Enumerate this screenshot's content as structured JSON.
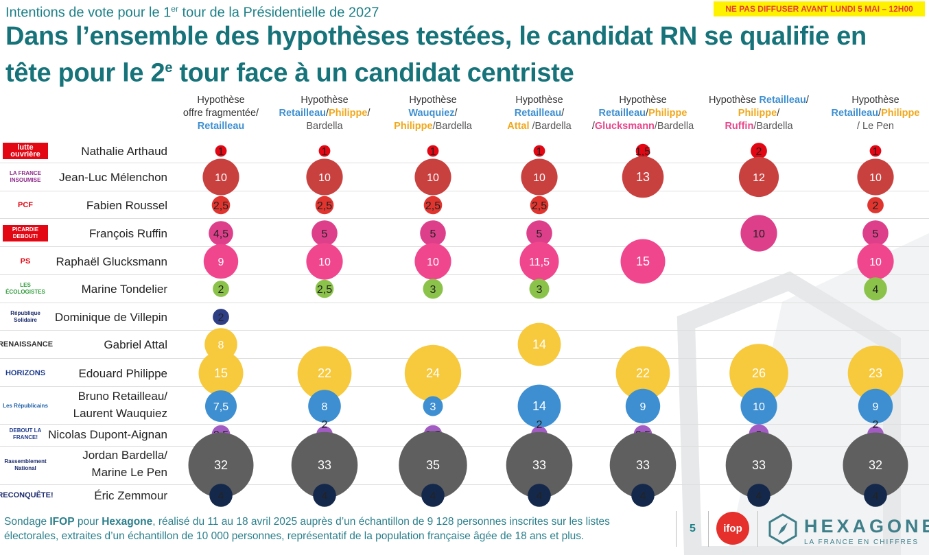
{
  "header": {
    "subtitle_pre": "Intentions de vote pour le 1",
    "subtitle_sup": "er",
    "subtitle_post": " tour de la Présidentielle de 2027",
    "embargo": "NE PAS DIFFUSER AVANT LUNDI 5 MAI – 12H00",
    "headline_1": "Dans l’ensemble des hypothèses testées, le candidat RN se qualifie en",
    "headline_2_pre": "tête pour le 2",
    "headline_2_sup": "e",
    "headline_2_post": " tour face à un candidat centriste"
  },
  "columns": [
    {
      "parts": [
        {
          "t": "Hypothèse",
          "c": "plain"
        },
        {
          "br": true
        },
        {
          "t": "offre fragmentée/",
          "c": "plain"
        },
        {
          "br": true
        },
        {
          "t": "Retailleau",
          "c": "blue"
        }
      ]
    },
    {
      "parts": [
        {
          "t": "Hypothèse",
          "c": "plain"
        },
        {
          "br": true
        },
        {
          "t": "Retailleau",
          "c": "blue"
        },
        {
          "t": "/",
          "c": "plain"
        },
        {
          "t": "Philippe",
          "c": "orange"
        },
        {
          "t": "/",
          "c": "plain"
        },
        {
          "br": true
        },
        {
          "t": "Bardella",
          "c": "grey"
        }
      ]
    },
    {
      "parts": [
        {
          "t": "Hypothèse",
          "c": "plain"
        },
        {
          "br": true
        },
        {
          "t": "Wauquiez",
          "c": "blue"
        },
        {
          "t": "/",
          "c": "plain"
        },
        {
          "br": true
        },
        {
          "t": "Philippe",
          "c": "orange"
        },
        {
          "t": "/Bardella",
          "c": "grey"
        }
      ]
    },
    {
      "parts": [
        {
          "t": "Hypothèse",
          "c": "plain"
        },
        {
          "br": true
        },
        {
          "t": "Retailleau",
          "c": "blue"
        },
        {
          "t": "/",
          "c": "plain"
        },
        {
          "br": true
        },
        {
          "t": "Attal",
          "c": "orange"
        },
        {
          "t": " /Bardella",
          "c": "grey"
        }
      ]
    },
    {
      "parts": [
        {
          "t": "Hypothèse",
          "c": "plain"
        },
        {
          "br": true
        },
        {
          "t": "Retailleau",
          "c": "blue"
        },
        {
          "t": "/",
          "c": "plain"
        },
        {
          "t": "Philippe",
          "c": "orange"
        },
        {
          "br": true
        },
        {
          "t": "/",
          "c": "plain"
        },
        {
          "t": "Glucksmann",
          "c": "pink"
        },
        {
          "t": "/Bardella",
          "c": "grey"
        }
      ]
    },
    {
      "parts": [
        {
          "t": "Hypothèse ",
          "c": "plain"
        },
        {
          "t": "Retailleau",
          "c": "blue"
        },
        {
          "t": "/",
          "c": "plain"
        },
        {
          "br": true
        },
        {
          "t": "Philippe",
          "c": "orange"
        },
        {
          "t": "/",
          "c": "plain"
        },
        {
          "br": true
        },
        {
          "t": "Ruffin",
          "c": "pink"
        },
        {
          "t": "/Bardella",
          "c": "grey"
        }
      ]
    },
    {
      "parts": [
        {
          "t": "Hypothèse",
          "c": "plain"
        },
        {
          "br": true
        },
        {
          "t": "Retailleau",
          "c": "blue"
        },
        {
          "t": "/",
          "c": "plain"
        },
        {
          "t": "Philippe",
          "c": "orange"
        },
        {
          "br": true
        },
        {
          "t": "/ Le Pen",
          "c": "grey"
        }
      ]
    }
  ],
  "logos": [
    {
      "text": "lutte ouvrière",
      "bg": "#e30613",
      "fg": "#ffffff"
    },
    {
      "text": "LA FRANCE INSOUMISE",
      "bg": "#ffffff",
      "fg": "#8e2a8b"
    },
    {
      "text": "PCF",
      "bg": "#ffffff",
      "fg": "#e30613"
    },
    {
      "text": "PICARDIE DEBOUT!",
      "bg": "#e30613",
      "fg": "#ffffff"
    },
    {
      "text": "PS",
      "bg": "#ffffff",
      "fg": "#e30613"
    },
    {
      "text": "LES ÉCOLOGISTES",
      "bg": "#ffffff",
      "fg": "#2e9b3a"
    },
    {
      "text": "République Solidaire",
      "bg": "#ffffff",
      "fg": "#1a2a6c"
    },
    {
      "text": "RENAISSANCE",
      "bg": "#ffffff",
      "fg": "#333333"
    },
    {
      "text": "HORIZONS",
      "bg": "#ffffff",
      "fg": "#1d3b8c"
    },
    {
      "text": "Les Républicains",
      "bg": "#ffffff",
      "fg": "#1d5fa8"
    },
    {
      "text": "DEBOUT LA FRANCE!",
      "bg": "#ffffff",
      "fg": "#1d3b8c"
    },
    {
      "text": "Rassemblement National",
      "bg": "#ffffff",
      "fg": "#1a2a6c"
    },
    {
      "text": "RECONQUÊTE!",
      "bg": "#ffffff",
      "fg": "#1a2a6c"
    }
  ],
  "chart_data": {
    "type": "bubble-table",
    "title": "Intentions de vote pour le 1er tour de la Présidentielle de 2027",
    "unit": "%",
    "columns": [
      "Hypothèse offre fragmentée/Retailleau",
      "Hypothèse Retailleau/Philippe/Bardella",
      "Hypothèse Wauquiez/Philippe/Bardella",
      "Hypothèse Retailleau/Attal /Bardella",
      "Hypothèse Retailleau/Philippe/Glucksmann/Bardella",
      "Hypothèse Retailleau/Philippe/Ruffin/Bardella",
      "Hypothèse Retailleau/Philippe / Le Pen"
    ],
    "rows": [
      {
        "name": "Nathalie Arthaud",
        "color": "#e30613",
        "values": [
          "1",
          "1",
          "1",
          "1",
          "1,5",
          "2",
          "1"
        ]
      },
      {
        "name": "Jean-Luc Mélenchon",
        "color": "#c8413f",
        "values": [
          "10",
          "10",
          "10",
          "10",
          "13",
          "12",
          "10"
        ]
      },
      {
        "name": "Fabien Roussel",
        "color": "#e0342f",
        "values": [
          "2,5",
          "2,5",
          "2,5",
          "2,5",
          null,
          null,
          "2"
        ]
      },
      {
        "name": "François Ruffin",
        "color": "#dd3f8a",
        "values": [
          "4,5",
          "5",
          "5",
          "5",
          null,
          "10",
          "5"
        ]
      },
      {
        "name": "Raphaël Glucksmann",
        "color": "#f0468e",
        "values": [
          "9",
          "10",
          "10",
          "11,5",
          "15",
          null,
          "10"
        ]
      },
      {
        "name": "Marine Tondelier",
        "color": "#8bc34a",
        "values": [
          "2",
          "2,5",
          "3",
          "3",
          null,
          null,
          "4"
        ]
      },
      {
        "name": "Dominique de Villepin",
        "color": "#2f3f86",
        "values": [
          "2",
          null,
          null,
          null,
          null,
          null,
          null
        ]
      },
      {
        "name": "Gabriel Attal",
        "color": "#f7c93d",
        "values": [
          "8",
          null,
          null,
          "14",
          null,
          null,
          null
        ]
      },
      {
        "name": "Edouard Philippe",
        "color": "#f7c93d",
        "values": [
          "15",
          "22",
          "24",
          null,
          "22",
          "26",
          "23"
        ]
      },
      {
        "name_1": "Bruno Retailleau/",
        "name_2": "Laurent Wauquiez",
        "color": "#3d8fd1",
        "values": [
          "7,5",
          "8",
          "3",
          "14",
          "9",
          "10",
          "9"
        ]
      },
      {
        "name": "Nicolas Dupont-Aignan",
        "color": "#a35bc4",
        "values": [
          "2,5",
          "2",
          "2,5",
          "2",
          "2,5",
          "3",
          "2"
        ]
      },
      {
        "name_1": "Jordan Bardella/",
        "name_2": "Marine Le Pen",
        "color": "#5f5f5f",
        "values": [
          "32",
          "33",
          "35",
          "33",
          "33",
          "33",
          "32"
        ]
      },
      {
        "name": "Éric Zemmour",
        "color": "#14284b",
        "values": [
          "4",
          "4",
          "4",
          "4",
          "4",
          "4",
          "4"
        ]
      }
    ]
  },
  "footer": {
    "t1": "Sondage ",
    "b1": "IFOP",
    "t2": " pour ",
    "b2": "Hexagone",
    "t3": ", réalisé du 11 au 18 avril 2025 auprès d’un échantillon de 9 128 personnes inscrites sur les listes électorales, extraites d’un échantillon de 10 000 personnes, représentatif de la population française âgée de 18 ans et plus.",
    "page": "5",
    "ifop": "ifop",
    "brand": "HEXAGONE",
    "tagline": "LA FRANCE EN CHIFFRES"
  }
}
